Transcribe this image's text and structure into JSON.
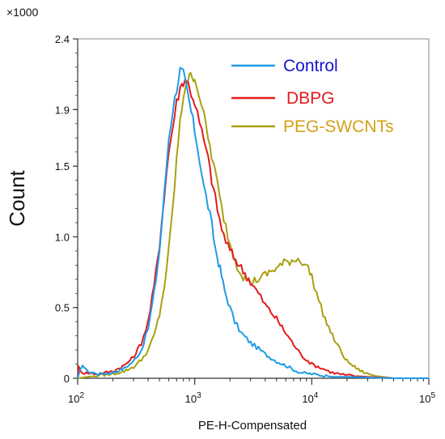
{
  "chart_data": {
    "type": "line",
    "title": "",
    "xlabel": "PE-H-Compensated",
    "ylabel": "Count",
    "y_multiplier_label": "×1000",
    "x_scale": "log",
    "xlim": [
      100,
      100000
    ],
    "ylim": [
      0,
      2.4
    ],
    "x_ticks": [
      {
        "value": 100,
        "base": "10",
        "exp": "2"
      },
      {
        "value": 1000,
        "base": "10",
        "exp": "3"
      },
      {
        "value": 10000,
        "base": "10",
        "exp": "4"
      },
      {
        "value": 100000,
        "base": "10",
        "exp": "5"
      }
    ],
    "y_ticks": [
      {
        "value": 0,
        "label": "0"
      },
      {
        "value": 0.5,
        "label": "0.5"
      },
      {
        "value": 1.0,
        "label": "1.0"
      },
      {
        "value": 1.5,
        "label": "1.5"
      },
      {
        "value": 1.9,
        "label": "1.9"
      },
      {
        "value": 2.4,
        "label": "2.4"
      }
    ],
    "grid": false,
    "legend_position": "top-right",
    "series": [
      {
        "name": "Control",
        "color": "#1e9be8",
        "label_color": "#1414c8",
        "points": [
          [
            100,
            0.0
          ],
          [
            110,
            0.1
          ],
          [
            120,
            0.05
          ],
          [
            150,
            0.03
          ],
          [
            200,
            0.04
          ],
          [
            250,
            0.07
          ],
          [
            300,
            0.12
          ],
          [
            350,
            0.2
          ],
          [
            400,
            0.35
          ],
          [
            450,
            0.6
          ],
          [
            500,
            0.9
          ],
          [
            550,
            1.3
          ],
          [
            600,
            1.7
          ],
          [
            650,
            1.9
          ],
          [
            700,
            2.05
          ],
          [
            750,
            2.18
          ],
          [
            800,
            2.15
          ],
          [
            850,
            2.05
          ],
          [
            900,
            1.95
          ],
          [
            1000,
            1.75
          ],
          [
            1100,
            1.55
          ],
          [
            1200,
            1.35
          ],
          [
            1300,
            1.22
          ],
          [
            1400,
            1.08
          ],
          [
            1500,
            0.92
          ],
          [
            1600,
            0.82
          ],
          [
            1700,
            0.72
          ],
          [
            1800,
            0.62
          ],
          [
            2000,
            0.5
          ],
          [
            2200,
            0.4
          ],
          [
            2500,
            0.32
          ],
          [
            3000,
            0.25
          ],
          [
            3500,
            0.21
          ],
          [
            4000,
            0.17
          ],
          [
            5000,
            0.12
          ],
          [
            6000,
            0.09
          ],
          [
            7000,
            0.06
          ],
          [
            8000,
            0.04
          ],
          [
            10000,
            0.03
          ],
          [
            15000,
            0.01
          ],
          [
            20000,
            0.01
          ],
          [
            50000,
            0.0
          ],
          [
            100000,
            0.0
          ]
        ]
      },
      {
        "name": "DBPG",
        "color": "#e41a1c",
        "label_color": "#e41a1c",
        "points": [
          [
            100,
            0.0
          ],
          [
            102,
            0.08
          ],
          [
            110,
            0.04
          ],
          [
            150,
            0.03
          ],
          [
            200,
            0.05
          ],
          [
            250,
            0.09
          ],
          [
            300,
            0.15
          ],
          [
            350,
            0.25
          ],
          [
            400,
            0.4
          ],
          [
            450,
            0.65
          ],
          [
            500,
            0.95
          ],
          [
            550,
            1.3
          ],
          [
            600,
            1.6
          ],
          [
            650,
            1.78
          ],
          [
            700,
            1.95
          ],
          [
            750,
            2.05
          ],
          [
            800,
            2.1
          ],
          [
            850,
            2.12
          ],
          [
            900,
            2.05
          ],
          [
            1000,
            1.95
          ],
          [
            1100,
            1.8
          ],
          [
            1200,
            1.68
          ],
          [
            1300,
            1.55
          ],
          [
            1400,
            1.4
          ],
          [
            1500,
            1.27
          ],
          [
            1700,
            1.05
          ],
          [
            2000,
            0.9
          ],
          [
            2500,
            0.78
          ],
          [
            3000,
            0.68
          ],
          [
            3500,
            0.6
          ],
          [
            4000,
            0.52
          ],
          [
            5000,
            0.42
          ],
          [
            6000,
            0.32
          ],
          [
            7000,
            0.24
          ],
          [
            8000,
            0.17
          ],
          [
            10000,
            0.1
          ],
          [
            15000,
            0.04
          ],
          [
            20000,
            0.02
          ],
          [
            30000,
            0.01
          ],
          [
            50000,
            0.0
          ],
          [
            100000,
            0.0
          ]
        ]
      },
      {
        "name": "PEG-SWCNTs",
        "color": "#a8a010",
        "label_color": "#d4a017",
        "points": [
          [
            100,
            0.0
          ],
          [
            150,
            0.02
          ],
          [
            200,
            0.03
          ],
          [
            250,
            0.05
          ],
          [
            300,
            0.08
          ],
          [
            350,
            0.13
          ],
          [
            400,
            0.2
          ],
          [
            450,
            0.3
          ],
          [
            500,
            0.45
          ],
          [
            550,
            0.65
          ],
          [
            600,
            0.9
          ],
          [
            650,
            1.2
          ],
          [
            700,
            1.55
          ],
          [
            750,
            1.8
          ],
          [
            800,
            2.0
          ],
          [
            850,
            2.1
          ],
          [
            900,
            2.12
          ],
          [
            950,
            2.15
          ],
          [
            1000,
            2.12
          ],
          [
            1100,
            2.0
          ],
          [
            1200,
            1.85
          ],
          [
            1300,
            1.7
          ],
          [
            1500,
            1.45
          ],
          [
            1700,
            1.2
          ],
          [
            2000,
            0.95
          ],
          [
            2300,
            0.8
          ],
          [
            2600,
            0.72
          ],
          [
            3000,
            0.68
          ],
          [
            3500,
            0.7
          ],
          [
            4000,
            0.73
          ],
          [
            5000,
            0.78
          ],
          [
            6000,
            0.82
          ],
          [
            7000,
            0.84
          ],
          [
            8000,
            0.84
          ],
          [
            9000,
            0.8
          ],
          [
            10000,
            0.72
          ],
          [
            11000,
            0.6
          ],
          [
            12000,
            0.5
          ],
          [
            13000,
            0.42
          ],
          [
            15000,
            0.3
          ],
          [
            18000,
            0.18
          ],
          [
            20000,
            0.12
          ],
          [
            25000,
            0.06
          ],
          [
            30000,
            0.03
          ],
          [
            40000,
            0.01
          ],
          [
            50000,
            0.0
          ],
          [
            100000,
            0.0
          ]
        ]
      }
    ]
  }
}
